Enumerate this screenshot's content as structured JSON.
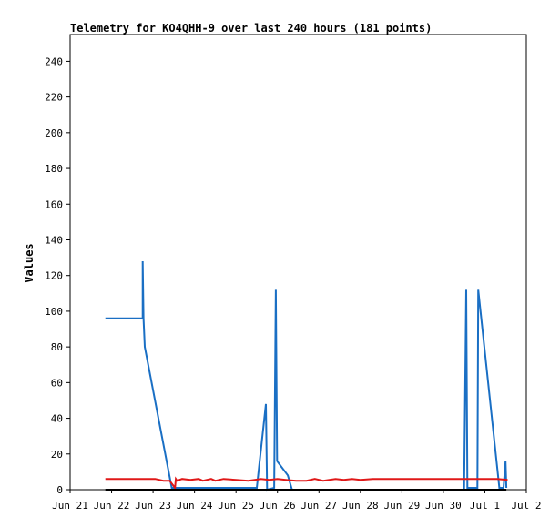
{
  "chart_data": {
    "type": "line",
    "title": "Telemetry for KO4QHH-9 over last 240 hours (181 points)",
    "xlabel": "",
    "ylabel": "Values",
    "xlim": [
      0,
      11
    ],
    "ylim": [
      0,
      255
    ],
    "x_ticks": [
      {
        "x": 0,
        "label": "Jun 21"
      },
      {
        "x": 1,
        "label": "Jun 22"
      },
      {
        "x": 2,
        "label": "Jun 23"
      },
      {
        "x": 3,
        "label": "Jun 24"
      },
      {
        "x": 4,
        "label": "Jun 25"
      },
      {
        "x": 5,
        "label": "Jun 26"
      },
      {
        "x": 6,
        "label": "Jun 27"
      },
      {
        "x": 7,
        "label": "Jun 28"
      },
      {
        "x": 8,
        "label": "Jun 29"
      },
      {
        "x": 9,
        "label": "Jun 30"
      },
      {
        "x": 10,
        "label": "Jul 1"
      },
      {
        "x": 11,
        "label": "Jul 2"
      }
    ],
    "y_ticks": [
      0,
      20,
      40,
      60,
      80,
      100,
      120,
      140,
      160,
      180,
      200,
      220,
      240
    ],
    "grid": false,
    "series": [
      {
        "color": "#1a6fc4",
        "points": [
          [
            0.85,
            96
          ],
          [
            1.75,
            96
          ],
          [
            1.75,
            128
          ],
          [
            1.77,
            96
          ],
          [
            1.8,
            80
          ],
          [
            2.45,
            1
          ],
          [
            4.5,
            1
          ],
          [
            4.72,
            48
          ],
          [
            4.75,
            0
          ],
          [
            4.92,
            1
          ],
          [
            4.96,
            112
          ],
          [
            4.99,
            16
          ],
          [
            5.25,
            8
          ],
          [
            5.35,
            0
          ],
          [
            9.5,
            0
          ],
          [
            9.55,
            112
          ],
          [
            9.58,
            1
          ],
          [
            9.82,
            1
          ],
          [
            9.84,
            112
          ],
          [
            10.35,
            1
          ],
          [
            10.45,
            1
          ],
          [
            10.5,
            16
          ],
          [
            10.52,
            1
          ]
        ]
      },
      {
        "color": "#e01818",
        "points": [
          [
            0.85,
            6
          ],
          [
            2.05,
            6
          ],
          [
            2.25,
            5
          ],
          [
            2.4,
            5
          ],
          [
            2.53,
            1
          ],
          [
            2.55,
            6
          ],
          [
            2.58,
            5
          ],
          [
            2.7,
            6
          ],
          [
            2.9,
            5.5
          ],
          [
            3.1,
            6
          ],
          [
            3.2,
            5
          ],
          [
            3.4,
            6
          ],
          [
            3.5,
            5
          ],
          [
            3.7,
            6
          ],
          [
            4.0,
            5.5
          ],
          [
            4.3,
            5
          ],
          [
            4.6,
            6
          ],
          [
            4.8,
            5.5
          ],
          [
            5.0,
            6
          ],
          [
            5.2,
            5.5
          ],
          [
            5.45,
            5
          ],
          [
            5.7,
            5
          ],
          [
            5.9,
            6
          ],
          [
            6.1,
            5
          ],
          [
            6.4,
            6
          ],
          [
            6.6,
            5.5
          ],
          [
            6.8,
            6
          ],
          [
            7.0,
            5.5
          ],
          [
            7.3,
            6
          ],
          [
            7.6,
            6
          ],
          [
            8.0,
            6
          ],
          [
            8.5,
            6
          ],
          [
            9.0,
            6
          ],
          [
            9.5,
            6
          ],
          [
            9.8,
            6
          ],
          [
            10.0,
            6
          ],
          [
            10.3,
            6
          ],
          [
            10.55,
            5.5
          ]
        ]
      },
      {
        "color": "#000000",
        "points": [
          [
            0.85,
            0
          ],
          [
            10.52,
            0
          ]
        ]
      }
    ]
  }
}
